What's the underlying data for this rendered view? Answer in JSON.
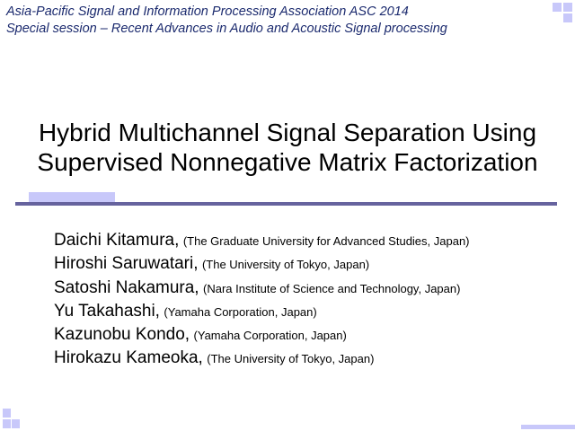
{
  "header": {
    "line1": "Asia-Pacific Signal and Information Processing Association ASC 2014",
    "line2": "Special session  – Recent Advances in Audio and Acoustic Signal processing"
  },
  "title": {
    "line1": "Hybrid Multichannel Signal Separation Using",
    "line2": "Supervised Nonnegative Matrix Factorization"
  },
  "authors": [
    {
      "name": "Daichi Kitamura,",
      "affiliation": "(The Graduate University for Advanced Studies, Japan)"
    },
    {
      "name": "Hiroshi Saruwatari,",
      "affiliation": "(The University of Tokyo, Japan)"
    },
    {
      "name": "Satoshi Nakamura,",
      "affiliation": "(Nara Institute of Science and Technology, Japan)"
    },
    {
      "name": "Yu Takahashi,",
      "affiliation": "(Yamaha Corporation, Japan)"
    },
    {
      "name": "Kazunobu Kondo,",
      "affiliation": "(Yamaha Corporation, Japan)"
    },
    {
      "name": "Hirokazu Kameoka,",
      "affiliation": "(The University of Tokyo, Japan)"
    }
  ],
  "colors": {
    "header_text": "#1b2a6e",
    "accent_light": "#c8c8fa",
    "accent_dark": "#66639e"
  }
}
